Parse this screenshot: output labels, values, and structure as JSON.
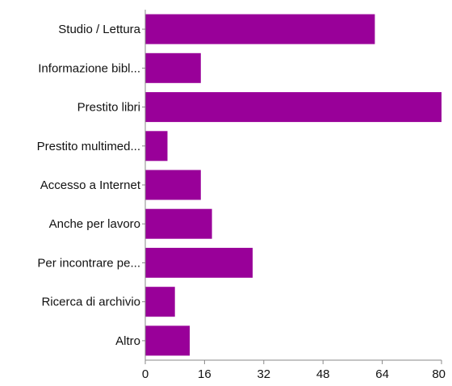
{
  "chart_data": {
    "type": "bar",
    "orientation": "horizontal",
    "categories": [
      "Studio / Lettura",
      "Informazione bibl...",
      "Prestito libri",
      "Prestito multimed...",
      "Accesso a Internet",
      "Anche per lavoro",
      "Per incontrare pe...",
      "Ricerca di archivio",
      "Altro"
    ],
    "values": [
      62,
      15,
      80,
      6,
      15,
      18,
      29,
      8,
      12
    ],
    "xlim": [
      0,
      80
    ],
    "xticks": [
      0,
      16,
      32,
      48,
      64,
      80
    ],
    "grid": false,
    "colors": {
      "bar": "#990099",
      "axis": "#888888",
      "text": "#111111"
    }
  }
}
